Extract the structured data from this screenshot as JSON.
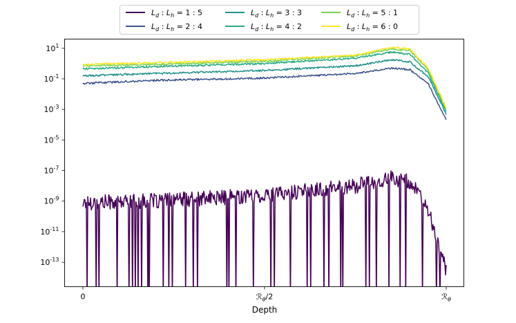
{
  "chart_data": {
    "type": "line",
    "title": "",
    "xlabel": "Depth",
    "ylabel": "",
    "yscale": "log",
    "ylim_exponent": [
      -14.6,
      1.6
    ],
    "x_ticks": [
      {
        "pos": 0,
        "label": "0"
      },
      {
        "pos": 0.5,
        "label": "ℛθ/2"
      },
      {
        "pos": 1,
        "label": "ℛθ"
      }
    ],
    "y_ticks": [
      {
        "exp": 1,
        "label": "10^1"
      },
      {
        "exp": -1,
        "label": "10^-1"
      },
      {
        "exp": -3,
        "label": "10^-3"
      },
      {
        "exp": -5,
        "label": "10^-5"
      },
      {
        "exp": -7,
        "label": "10^-7"
      },
      {
        "exp": -9,
        "label": "10^-9"
      },
      {
        "exp": -11,
        "label": "10^-11"
      },
      {
        "exp": -13,
        "label": "10^-13"
      }
    ],
    "legend_position": "top, outside plot",
    "series": [
      {
        "name": "Ld : Lh = 1 : 5",
        "ratio": "1 : 5",
        "color": "#440154",
        "control_points": [
          [
            0,
            -9.1
          ],
          [
            0.2,
            -9.0
          ],
          [
            0.5,
            -8.6
          ],
          [
            0.75,
            -8.0
          ],
          [
            0.85,
            -7.5
          ],
          [
            0.9,
            -7.7
          ],
          [
            0.95,
            -9.6
          ],
          [
            1.0,
            -13.6
          ]
        ],
        "noise_exp": 0.5,
        "drop_frequency": 0.07
      },
      {
        "name": "Ld : Lh = 2 : 4",
        "ratio": "2 : 4",
        "color": "#3b528b",
        "control_points": [
          [
            0,
            -1.3
          ],
          [
            0.2,
            -1.1
          ],
          [
            0.5,
            -0.95
          ],
          [
            0.75,
            -0.65
          ],
          [
            0.85,
            -0.3
          ],
          [
            0.9,
            -0.4
          ],
          [
            0.95,
            -1.3
          ],
          [
            1.0,
            -3.7
          ]
        ],
        "noise_exp": 0.07
      },
      {
        "name": "Ld : Lh = 3 : 3",
        "ratio": "3 : 3",
        "color": "#21918c",
        "control_points": [
          [
            0,
            -0.8
          ],
          [
            0.2,
            -0.65
          ],
          [
            0.5,
            -0.45
          ],
          [
            0.75,
            -0.15
          ],
          [
            0.85,
            0.25
          ],
          [
            0.9,
            0.1
          ],
          [
            0.95,
            -0.85
          ],
          [
            1.0,
            -3.3
          ]
        ],
        "noise_exp": 0.07
      },
      {
        "name": "Ld : Lh = 4 : 2",
        "ratio": "4 : 2",
        "color": "#27a97f",
        "control_points": [
          [
            0,
            -0.35
          ],
          [
            0.2,
            -0.2
          ],
          [
            0.5,
            0.0
          ],
          [
            0.75,
            0.35
          ],
          [
            0.85,
            0.75
          ],
          [
            0.9,
            0.6
          ],
          [
            0.95,
            -0.6
          ],
          [
            1.0,
            -3.15
          ]
        ],
        "noise_exp": 0.07
      },
      {
        "name": "Ld : Lh = 5 : 1",
        "ratio": "5 : 1",
        "color": "#7ad151",
        "control_points": [
          [
            0,
            -0.15
          ],
          [
            0.2,
            -0.05
          ],
          [
            0.5,
            0.15
          ],
          [
            0.75,
            0.5
          ],
          [
            0.85,
            0.95
          ],
          [
            0.9,
            0.85
          ],
          [
            0.95,
            -0.4
          ],
          [
            1.0,
            -3.0
          ]
        ],
        "noise_exp": 0.07
      },
      {
        "name": "Ld : Lh = 6 : 0",
        "ratio": "6 : 0",
        "color": "#fde725",
        "control_points": [
          [
            0,
            -0.05
          ],
          [
            0.2,
            0.05
          ],
          [
            0.5,
            0.25
          ],
          [
            0.75,
            0.55
          ],
          [
            0.85,
            1.05
          ],
          [
            0.9,
            0.95
          ],
          [
            0.95,
            -0.3
          ],
          [
            1.0,
            -2.9
          ]
        ],
        "noise_exp": 0.07
      }
    ]
  }
}
